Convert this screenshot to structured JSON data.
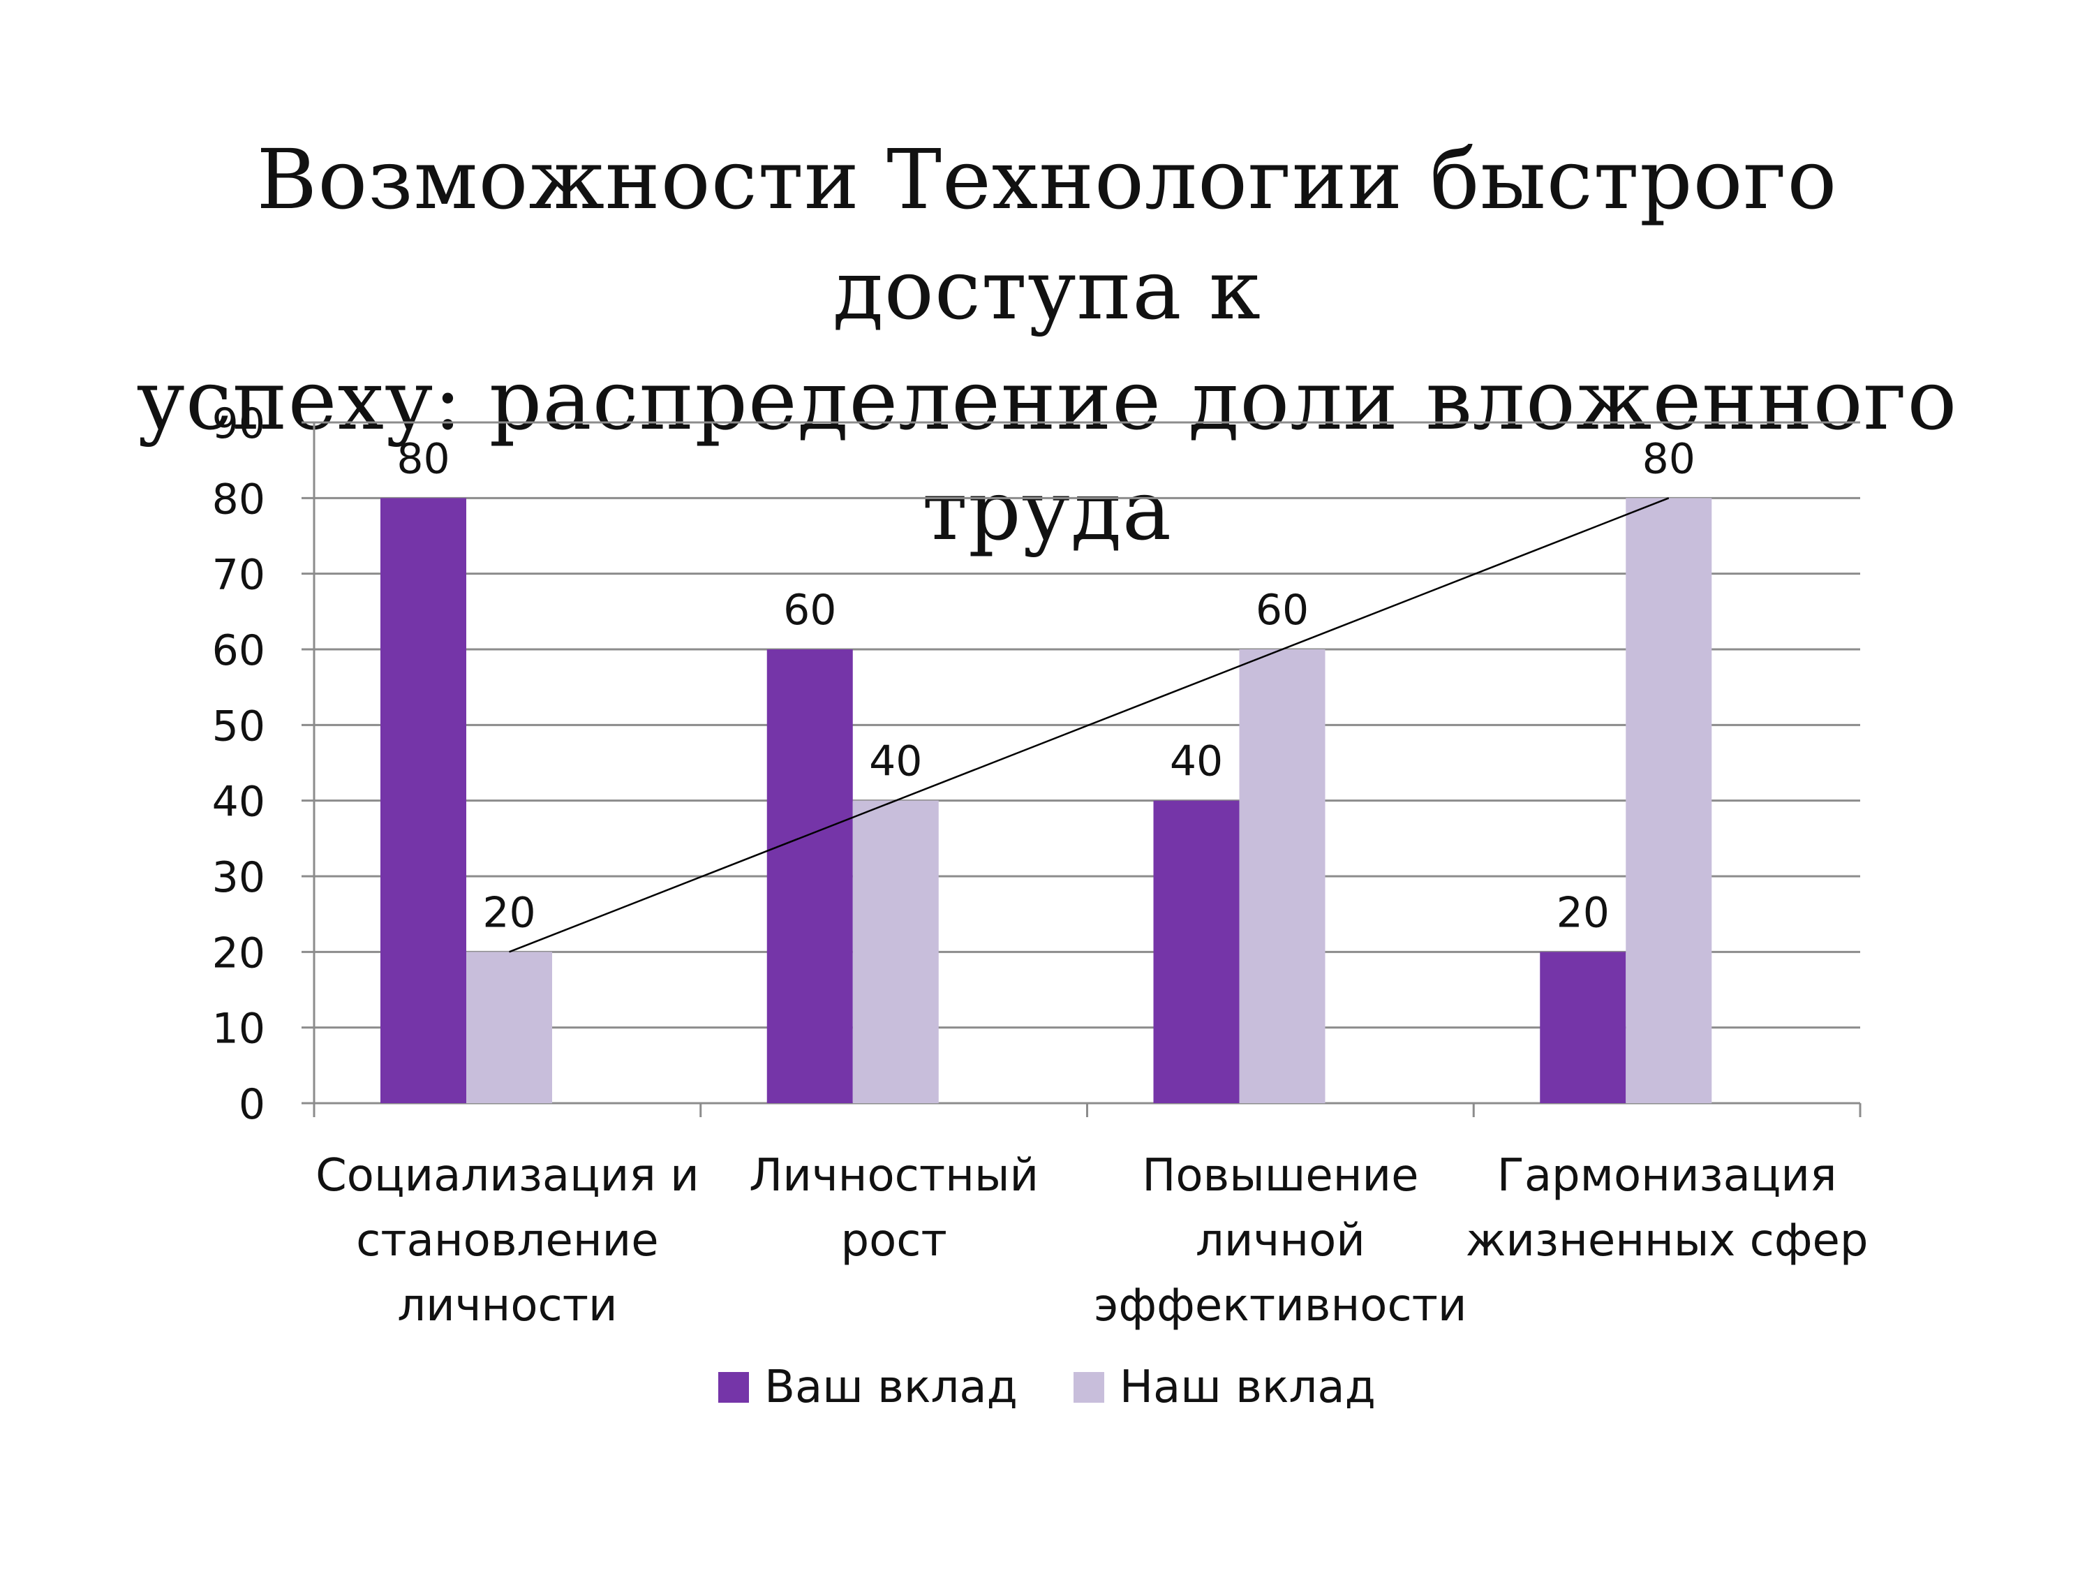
{
  "title": {
    "line1": "Возможности Технологии быстрого доступа к",
    "line2": "успеху: распределение доли вложенного труда"
  },
  "colors": {
    "series1": "#7535a8",
    "series2": "#c8bedb",
    "grid": "#8c8c8c",
    "trendline": "#000000"
  },
  "legend": {
    "items": [
      {
        "label": "Ваш вклад",
        "color": "#7535a8"
      },
      {
        "label": "Наш вклад",
        "color": "#c8bedb"
      }
    ]
  },
  "chart_data": {
    "type": "bar",
    "title": "Возможности Технологии быстрого доступа к успеху: распределение доли вложенного труда",
    "categories": [
      [
        "Социализация и",
        "становление",
        "личности"
      ],
      [
        "Личностный",
        "рост"
      ],
      [
        "Повышение",
        "личной",
        "эффективности"
      ],
      [
        "Гармонизация",
        "жизненных сфер"
      ]
    ],
    "series": [
      {
        "name": "Ваш вклад",
        "values": [
          80,
          60,
          40,
          20
        ]
      },
      {
        "name": "Наш вклад",
        "values": [
          20,
          40,
          60,
          80
        ]
      }
    ],
    "trendline": {
      "series": "Наш вклад",
      "from": 20,
      "to": 80
    },
    "ylim": [
      0,
      90
    ],
    "yticks": [
      0,
      10,
      20,
      30,
      40,
      50,
      60,
      70,
      80,
      90
    ],
    "grid": true,
    "data_labels": true,
    "legend_position": "bottom"
  }
}
